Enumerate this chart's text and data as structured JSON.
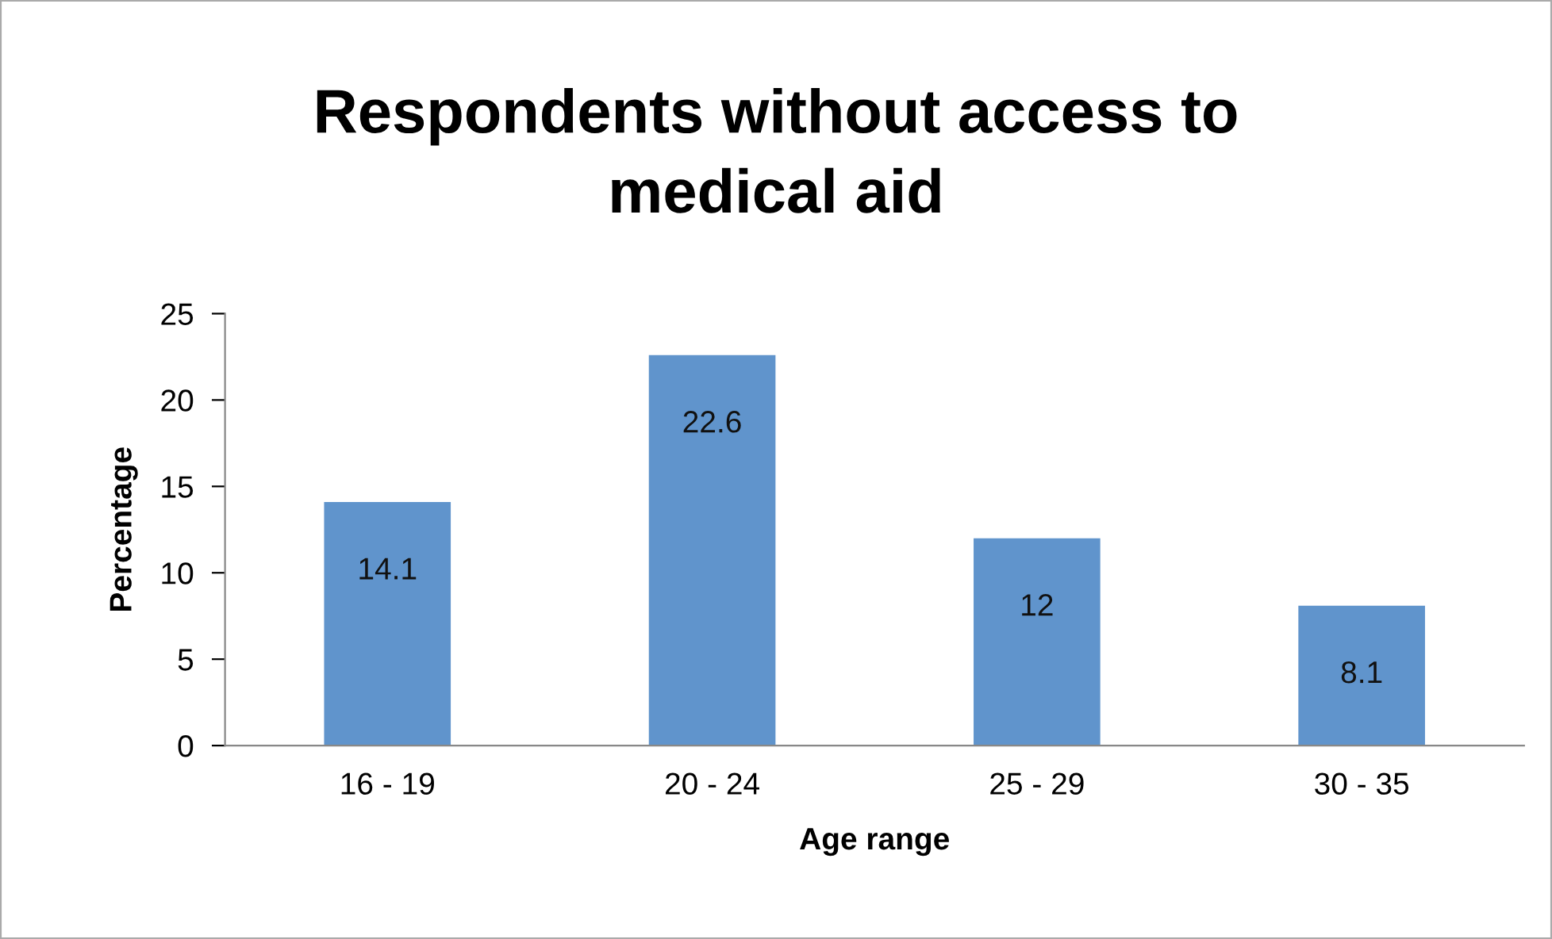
{
  "chart_data": {
    "type": "bar",
    "title": "Respondents without access to\nmedical aid",
    "xlabel": "Age range",
    "ylabel": "Percentage",
    "categories": [
      "16 - 19",
      "20 - 24",
      "25 - 29",
      "30 - 35"
    ],
    "values": [
      14.1,
      22.6,
      12,
      8.1
    ],
    "color": "#6094cc",
    "ylim": [
      0,
      25
    ],
    "yticks": [
      0,
      5,
      10,
      15,
      20,
      25
    ],
    "grid": false,
    "legend": false,
    "data_labels": true
  }
}
